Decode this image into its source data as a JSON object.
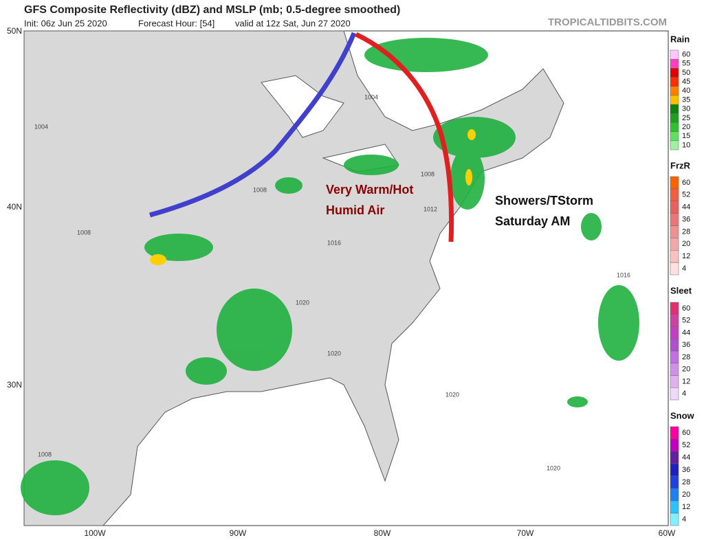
{
  "header": {
    "title": "GFS Composite Reflectivity (dBZ) and MSLP (mb; 0.5-degree smoothed)",
    "init": "Init: 06z Jun 25 2020",
    "forecast_hour": "Forecast Hour: [54]",
    "valid": "valid at 12z Sat, Jun 27 2020",
    "site": "TROPICALTIDBITS.COM"
  },
  "axes": {
    "latitudes": [
      "50N",
      "40N",
      "30N"
    ],
    "longitudes": [
      "100W",
      "90W",
      "80W",
      "70W",
      "60W"
    ]
  },
  "annotations": {
    "warm_1": "Very Warm/Hot",
    "warm_2": "Humid Air",
    "storm_1": "Showers/TStorm",
    "storm_2": "Saturday AM"
  },
  "isobars": [
    "1004",
    "1004",
    "1008",
    "1008",
    "1012",
    "1016",
    "1016",
    "1020",
    "1020",
    "1020",
    "1020",
    "1008",
    "1008"
  ],
  "legends": [
    {
      "name": "Rain",
      "levels": [
        60,
        55,
        50,
        45,
        40,
        35,
        30,
        25,
        20,
        15,
        10
      ],
      "colors": [
        "#ffc8ff",
        "#ff40c0",
        "#e00000",
        "#ff3000",
        "#ff8000",
        "#ffc000",
        "#108010",
        "#20a020",
        "#30c030",
        "#60e060",
        "#a0f0a0"
      ]
    },
    {
      "name": "FrzR",
      "levels": [
        60,
        52,
        44,
        36,
        28,
        20,
        12,
        4
      ],
      "colors": [
        "#ff6000",
        "#f06040",
        "#e86060",
        "#e87878",
        "#f09090",
        "#f0a8a8",
        "#f8c0c0",
        "#ffe0e0"
      ]
    },
    {
      "name": "Sleet",
      "levels": [
        60,
        52,
        44,
        36,
        28,
        20,
        12,
        4
      ],
      "colors": [
        "#e03070",
        "#d040a0",
        "#c040c0",
        "#b050d0",
        "#c070e0",
        "#d090e8",
        "#e0b0f0",
        "#f0d8f8"
      ]
    },
    {
      "name": "Snow",
      "levels": [
        60,
        52,
        44,
        36,
        28,
        20,
        12,
        4
      ],
      "colors": [
        "#ff00a0",
        "#c000c0",
        "#6020a0",
        "#2020c0",
        "#2040e0",
        "#2080f0",
        "#30c0f8",
        "#80f0ff"
      ]
    }
  ]
}
